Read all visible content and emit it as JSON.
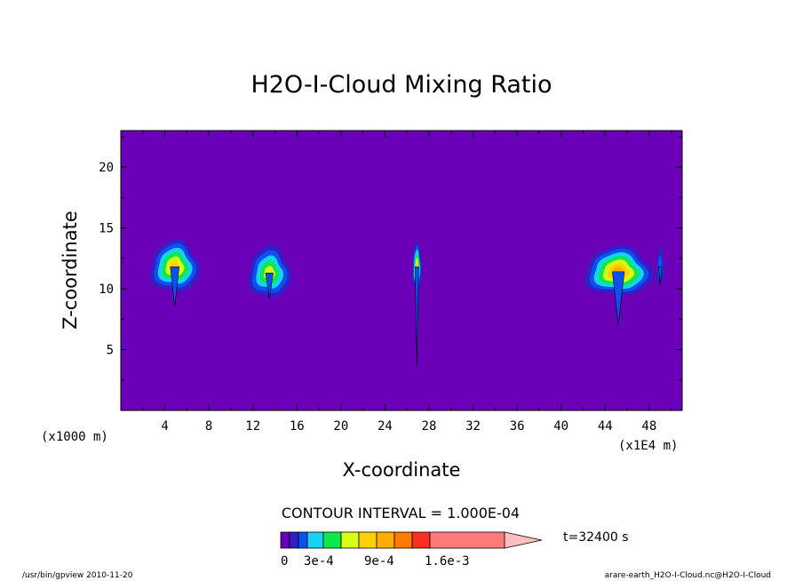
{
  "chart_data": {
    "type": "heatmap",
    "title": "H2O-I-Cloud Mixing Ratio",
    "xlabel": "X-coordinate",
    "ylabel": "Z-coordinate",
    "x_unit_left": "(x1000 m)",
    "x_unit_right": "(x1E4 m)",
    "x_ticks": [
      "4",
      "8",
      "12",
      "16",
      "20",
      "24",
      "28",
      "32",
      "36",
      "40",
      "44",
      "48"
    ],
    "y_ticks": [
      "5",
      "10",
      "15",
      "20"
    ],
    "xlim": [
      0,
      51
    ],
    "ylim": [
      0,
      23
    ],
    "contour_interval_text": "CONTOUR INTERVAL = 1.000E-04",
    "time_label": "t=32400 s",
    "colorbar": {
      "levels": [
        0,
        0.0001,
        0.0002,
        0.0003,
        0.0004,
        0.0005,
        0.0006,
        0.0007,
        0.0008,
        0.0009,
        0.001,
        0.0011,
        0.0012,
        0.0013,
        0.0014,
        0.0015,
        0.0016,
        0.0017
      ],
      "colors": [
        "#6a00b8",
        "#2f21c7",
        "#0c50f0",
        "#17d3f2",
        "#0fe84a",
        "#d5ff17",
        "#ffd100",
        "#ffae00",
        "#ff7b00",
        "#ff2e22",
        "#fd7a7a",
        "#fd7a7a",
        "#fd7a7a",
        "#fd7a7a",
        "#fd7a7a",
        "#fd7a7a",
        "#fd7a7a",
        "#fcc0c0"
      ],
      "tick_labels": [
        "0",
        "3e-4",
        "9e-4",
        "1.6e-3"
      ]
    },
    "clouds": [
      {
        "x": 4.9,
        "z": 11.8,
        "radius_x": 2.2,
        "radius_z": 2.1,
        "peak_level": 6,
        "tail_to_z": 8.5
      },
      {
        "x": 13.5,
        "z": 11.3,
        "radius_x": 1.9,
        "radius_z": 2.1,
        "peak_level": 5,
        "tail_to_z": 9.2
      },
      {
        "x": 26.9,
        "z": 11.8,
        "radius_x": 0.4,
        "radius_z": 1.9,
        "peak_level": 6,
        "tail_to_z": 3.5
      },
      {
        "x": 45.2,
        "z": 11.4,
        "radius_x": 3.0,
        "radius_z": 2.0,
        "peak_level": 7,
        "tail_to_z": 7.0
      },
      {
        "x": 49.0,
        "z": 11.8,
        "radius_x": 0.35,
        "radius_z": 1.5,
        "peak_level": 2,
        "tail_to_z": 10.3
      }
    ],
    "footer_left": "/usr/bin/gpview  2010-11-20",
    "footer_right": "arare-earth_H2O-I-Cloud.nc@H2O-I-Cloud"
  }
}
